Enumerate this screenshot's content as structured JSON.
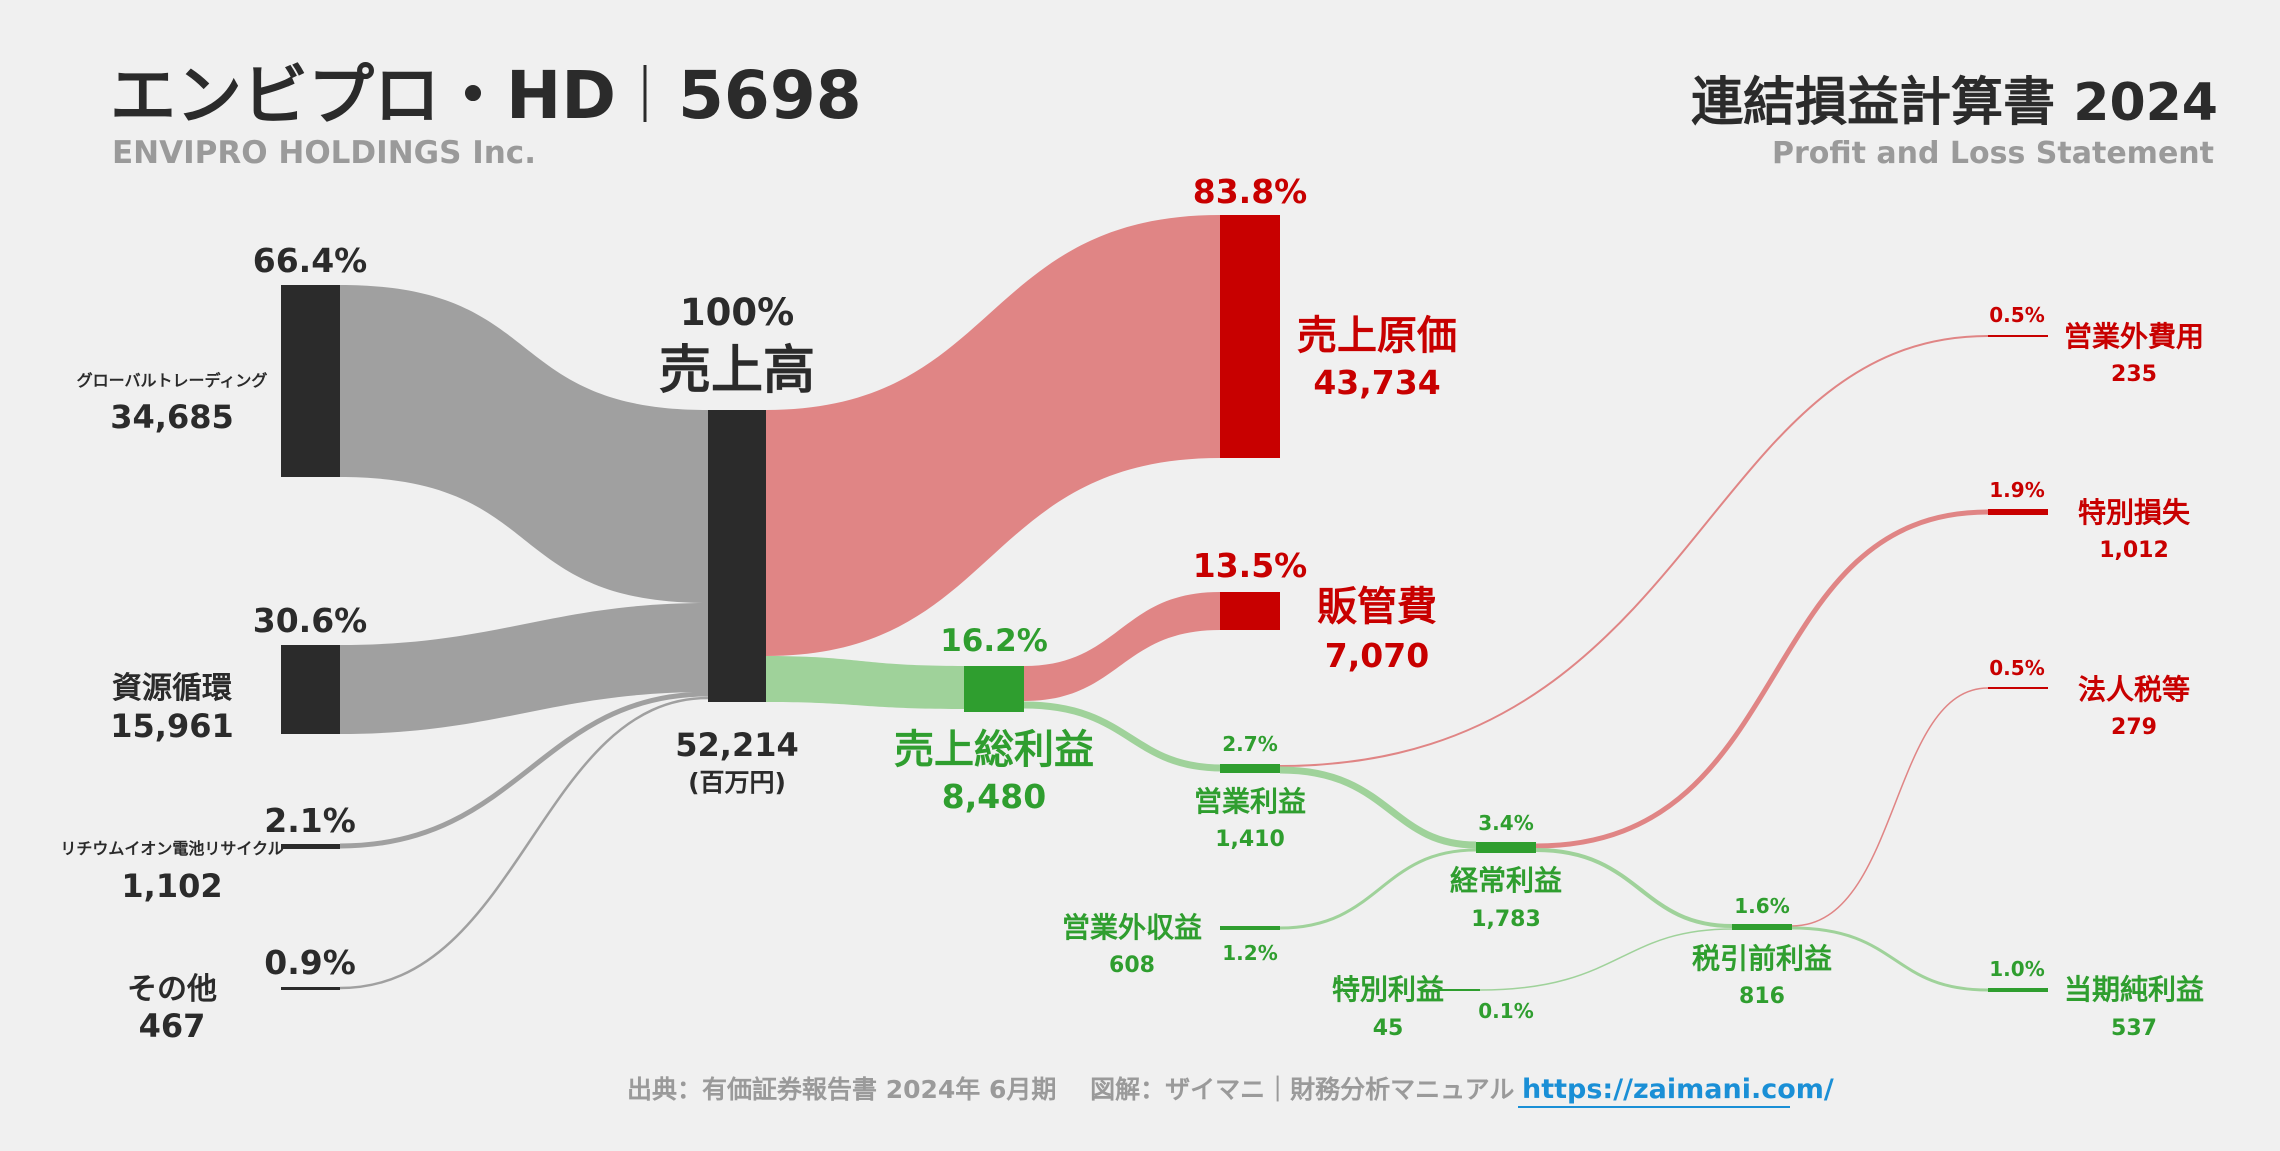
{
  "header": {
    "company": "エンビプロ・HD",
    "code": "5698",
    "company_en": "ENVIPRO HOLDINGS Inc.",
    "statement": "連結損益計算書 2024",
    "statement_en": "Profit and Loss Statement"
  },
  "chart_data": {
    "type": "sankey",
    "unit": "(百万円)",
    "revenue": {
      "label": "売上高",
      "value": "52,214",
      "pct": "100%"
    },
    "segments": [
      {
        "label": "グローバルトレーディング",
        "value": "34,685",
        "pct": "66.4%"
      },
      {
        "label": "資源循環",
        "value": "15,961",
        "pct": "30.6%"
      },
      {
        "label": "リチウムイオン電池リサイクル",
        "value": "1,102",
        "pct": "2.1%"
      },
      {
        "label": "その他",
        "value": "467",
        "pct": "0.9%"
      }
    ],
    "cost_of_sales": {
      "label": "売上原価",
      "value": "43,734",
      "pct": "83.8%"
    },
    "sga": {
      "label": "販管費",
      "value": "7,070",
      "pct": "13.5%"
    },
    "gross_profit": {
      "label": "売上総利益",
      "value": "8,480",
      "pct": "16.2%"
    },
    "operating_profit": {
      "label": "営業利益",
      "value": "1,410",
      "pct": "2.7%"
    },
    "non_op_income": {
      "label": "営業外収益",
      "value": "608",
      "pct": "1.2%"
    },
    "non_op_expense": {
      "label": "営業外費用",
      "value": "235",
      "pct": "0.5%"
    },
    "ordinary_profit": {
      "label": "経常利益",
      "value": "1,783",
      "pct": "3.4%"
    },
    "extra_gain": {
      "label": "特別利益",
      "value": "45",
      "pct": "0.1%"
    },
    "extra_loss": {
      "label": "特別損失",
      "value": "1,012",
      "pct": "1.9%"
    },
    "pretax_profit": {
      "label": "税引前利益",
      "value": "816",
      "pct": "1.6%"
    },
    "tax": {
      "label": "法人税等",
      "value": "279",
      "pct": "0.5%"
    },
    "net_profit": {
      "label": "当期純利益",
      "value": "537",
      "pct": "1.0%"
    }
  },
  "colors": {
    "dark": "#2b2b2b",
    "grey_flow": "#a0a0a0",
    "red": "#c80000",
    "red_flow": "#e08585",
    "green": "#2f9e2f",
    "green_flow": "#9fd29a",
    "link": "#1a8fd6"
  },
  "footer": {
    "source": "出典：有価証券報告書 2024年 6月期　 図解：ザイマニ｜財務分析マニュアル",
    "url": "https://zaimani.com/"
  }
}
